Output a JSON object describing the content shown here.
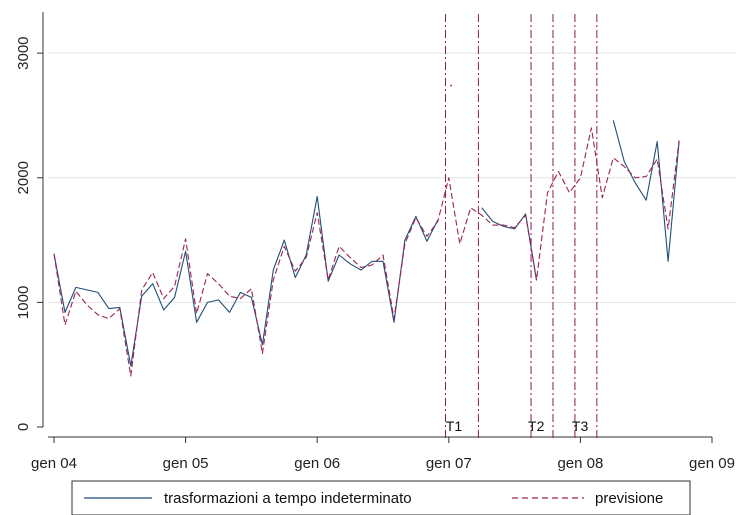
{
  "chart_data": {
    "type": "line",
    "title": "",
    "xlabel": "",
    "ylabel": "",
    "xlim": [
      0,
      60
    ],
    "ylim": [
      -50,
      3300
    ],
    "yticks": [
      0,
      1000,
      2000,
      3000
    ],
    "xticks": [
      {
        "pos": 0,
        "label": "gen 04"
      },
      {
        "pos": 12,
        "label": "gen 05"
      },
      {
        "pos": 24,
        "label": "gen 06"
      },
      {
        "pos": 36,
        "label": "gen 07"
      },
      {
        "pos": 48,
        "label": "gen 08"
      },
      {
        "pos": 60,
        "label": "gen 09"
      }
    ],
    "grid": "horizontal",
    "legend_position": "bottom",
    "colors": {
      "actual": "#1f4e79",
      "forecast": "#9b2450",
      "vlines": "#8b1a5a",
      "grid": "#e6e6e6"
    },
    "series": [
      {
        "name": "trasformazioni a tempo indeterminato",
        "style": "solid",
        "color": "#1f4e79",
        "values": [
          1390,
          920,
          1120,
          1100,
          1080,
          950,
          960,
          490,
          1050,
          1150,
          940,
          1040,
          1410,
          840,
          1000,
          1020,
          920,
          1080,
          1040,
          660,
          1260,
          1500,
          1200,
          1380,
          1850,
          1170,
          1380,
          1310,
          1260,
          1330,
          1330,
          840,
          1500,
          1690,
          1490,
          1660,
          null,
          null,
          null,
          1760,
          1650,
          1610,
          1590,
          1710,
          1180,
          null,
          null,
          null,
          null,
          null,
          null,
          2460,
          2130,
          1960,
          1820,
          2290,
          1330,
          2290
        ]
      },
      {
        "name": "previsione",
        "style": "dashed",
        "color": "#9b2450",
        "values": [
          1390,
          820,
          1090,
          980,
          900,
          870,
          950,
          410,
          1100,
          1240,
          1030,
          1130,
          1510,
          910,
          1230,
          1150,
          1050,
          1030,
          1110,
          590,
          1180,
          1450,
          1250,
          1360,
          1720,
          1180,
          1450,
          1360,
          1280,
          1300,
          1380,
          870,
          1470,
          1680,
          1530,
          1650,
          2000,
          1470,
          1760,
          1700,
          1620,
          1620,
          1600,
          1700,
          1180,
          1880,
          2050,
          1880,
          2000,
          2400,
          1840,
          2160,
          2090,
          2000,
          2010,
          2150,
          1590,
          2300
        ]
      }
    ],
    "annotations": [
      {
        "label": "T1",
        "x": 36
      },
      {
        "label": "T2",
        "x": 43.5
      },
      {
        "label": "T3",
        "x": 47.5
      }
    ],
    "vertical_lines": [
      35.7,
      38.7,
      43.5,
      45.5,
      47.5,
      49.5
    ],
    "stray_points": [
      {
        "x": 36.2,
        "y": 2740
      }
    ]
  }
}
